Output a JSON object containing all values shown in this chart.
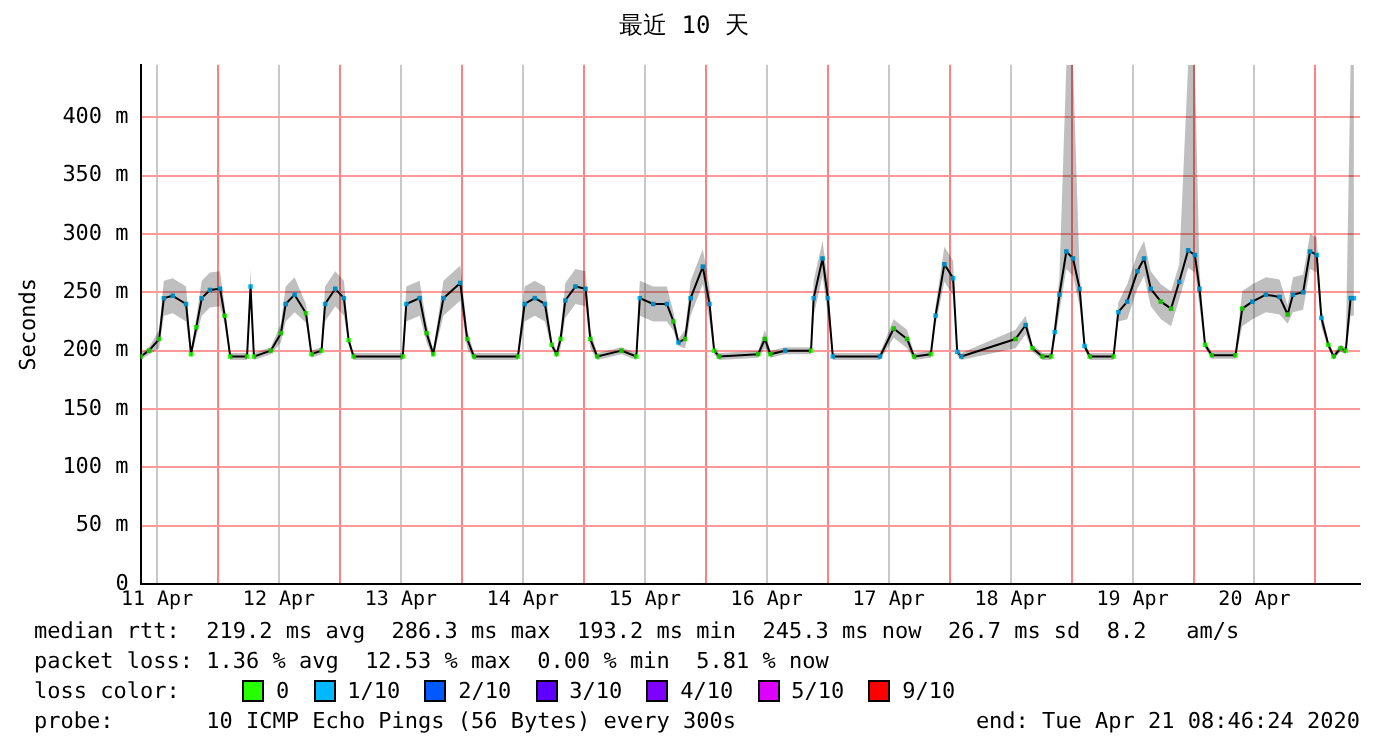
{
  "chart_data": {
    "type": "line",
    "title": "最近 10 天",
    "ylabel": "Seconds",
    "legend_title": "loss color:",
    "legend": "bottom",
    "grid": true,
    "marker": "square",
    "annotations": [
      "median rtt:  219.2 ms avg  286.3 ms max  193.2 ms min  245.3 ms now  26.7 ms sd  8.2   am/s",
      "packet loss: 1.36 % avg  12.53 % max  0.00 % min  5.81 % now",
      "probe:       10 ICMP Echo Pings (56 Bytes) every 300s",
      "end: Tue Apr 21 08:46:24 2020"
    ],
    "xlim": [
      "2020-04-11T08:46",
      "2020-04-21T08:46"
    ],
    "xticks": [
      {
        "value": "2020-04-11T12:00",
        "label": "11 Apr"
      },
      {
        "value": "2020-04-12",
        "label": null
      },
      {
        "value": "2020-04-12T12:00",
        "label": "12 Apr"
      },
      {
        "value": "2020-04-13",
        "label": null
      },
      {
        "value": "2020-04-13T12:00",
        "label": "13 Apr"
      },
      {
        "value": "2020-04-14",
        "label": null
      },
      {
        "value": "2020-04-14T12:00",
        "label": "14 Apr"
      },
      {
        "value": "2020-04-15",
        "label": null
      },
      {
        "value": "2020-04-15T12:00",
        "label": "15 Apr"
      },
      {
        "value": "2020-04-16",
        "label": null
      },
      {
        "value": "2020-04-16T12:00",
        "label": "16 Apr"
      },
      {
        "value": "2020-04-17",
        "label": null
      },
      {
        "value": "2020-04-17T12:00",
        "label": "17 Apr"
      },
      {
        "value": "2020-04-18",
        "label": null
      },
      {
        "value": "2020-04-18T12:00",
        "label": "18 Apr"
      },
      {
        "value": "2020-04-19",
        "label": null
      },
      {
        "value": "2020-04-19T12:00",
        "label": "19 Apr"
      },
      {
        "value": "2020-04-20",
        "label": null
      },
      {
        "value": "2020-04-20T12:00",
        "label": "20 Apr"
      },
      {
        "value": "2020-04-21",
        "label": null
      }
    ],
    "ylim": [
      0,
      445
    ],
    "yticks": [
      0,
      {
        "value": 50,
        "label": "50 m"
      },
      {
        "value": 100,
        "label": "100 m"
      },
      {
        "value": 150,
        "label": "150 m"
      },
      {
        "value": 200,
        "label": "200 m"
      },
      {
        "value": 250,
        "label": "250 m"
      },
      {
        "value": 300,
        "label": "300 m"
      },
      {
        "value": 350,
        "label": "350 m"
      },
      {
        "value": 400,
        "label": "400 m"
      }
    ],
    "series": [
      {
        "color": "#000000",
        "x": [
          "2020-04-11T08:46",
          "2020-04-11T10:25",
          "2020-04-11T12:25",
          "2020-04-11T13:20",
          "2020-04-11T15:05",
          "2020-04-11T17:43",
          "2020-04-11T18:41",
          "2020-04-11T19:43",
          "2020-04-11T20:48",
          "2020-04-11T22:24",
          "2020-04-12T00:24",
          "2020-04-12T01:19",
          "2020-04-12T02:24",
          "2020-04-12T05:43",
          "2020-04-12T06:24",
          "2020-04-12T07:04",
          "2020-04-12T10:23",
          "2020-04-12T12:23",
          "2020-04-12T13:19",
          "2020-04-12T15:04",
          "2020-04-12T17:19",
          "2020-04-12T18:23",
          "2020-04-12T20:23",
          "2020-04-12T21:04",
          "2020-04-12T23:04",
          "2020-04-13T00:47",
          "2020-04-13T01:42",
          "2020-04-13T02:40",
          "2020-04-13T12:22",
          "2020-04-13T13:03",
          "2020-04-13T15:41",
          "2020-04-13T17:03",
          "2020-04-13T18:22",
          "2020-04-13T20:22",
          "2020-04-13T23:41",
          "2020-04-14T01:02",
          "2020-04-14T02:22",
          "2020-04-14T11:02",
          "2020-04-14T12:21",
          "2020-04-14T14:21",
          "2020-04-14T16:21",
          "2020-04-14T17:40",
          "2020-04-14T18:38",
          "2020-04-14T19:26",
          "2020-04-14T20:21",
          "2020-04-14T22:21",
          "2020-04-15T00:21",
          "2020-04-15T01:16",
          "2020-04-15T02:37",
          "2020-04-15T07:25",
          "2020-04-15T10:20",
          "2020-04-15T11:01",
          "2020-04-15T13:39",
          "2020-04-15T16:20",
          "2020-04-15T17:39",
          "2020-04-15T18:37",
          "2020-04-15T19:56",
          "2020-04-15T21:01",
          "2020-04-15T23:25",
          "2020-04-16T00:44",
          "2020-04-16T01:39",
          "2020-04-16T02:37",
          "2020-04-16T10:19",
          "2020-04-16T11:38",
          "2020-04-16T12:43",
          "2020-04-16T15:38",
          "2020-04-16T20:43",
          "2020-04-16T21:14",
          "2020-04-16T22:59",
          "2020-04-17T00:02",
          "2020-04-17T01:00",
          "2020-04-17T10:18",
          "2020-04-17T12:59",
          "2020-04-17T15:37",
          "2020-04-17T16:59",
          "2020-04-17T20:18",
          "2020-04-17T21:13",
          "2020-04-17T22:58",
          "2020-04-18T00:41",
          "2020-04-18T01:29",
          "2020-04-18T02:17",
          "2020-04-18T12:58",
          "2020-04-18T14:58",
          "2020-04-18T16:17",
          "2020-04-18T18:17",
          "2020-04-18T20:00",
          "2020-04-18T20:41",
          "2020-04-18T21:36",
          "2020-04-18T22:58",
          "2020-04-19T00:17",
          "2020-04-19T01:35",
          "2020-04-19T02:33",
          "2020-04-19T03:35",
          "2020-04-19T08:16",
          "2020-04-19T09:11",
          "2020-04-19T10:57",
          "2020-04-19T12:57",
          "2020-04-19T14:16",
          "2020-04-19T15:35",
          "2020-04-19T17:35",
          "2020-04-19T19:35",
          "2020-04-19T21:11",
          "2020-04-19T22:56",
          "2020-04-20T00:16",
          "2020-04-20T01:11",
          "2020-04-20T02:16",
          "2020-04-20T03:35",
          "2020-04-20T08:16",
          "2020-04-20T09:35",
          "2020-04-20T11:35",
          "2020-04-20T14:15",
          "2020-04-20T16:56",
          "2020-04-20T18:32",
          "2020-04-20T19:34",
          "2020-04-20T21:34",
          "2020-04-20T22:56",
          "2020-04-21T00:15",
          "2020-04-21T01:10",
          "2020-04-21T02:32",
          "2020-04-21T03:34",
          "2020-04-21T04:56",
          "2020-04-21T05:58",
          "2020-04-21T06:55",
          "2020-04-21T07:34"
        ],
        "values": [
          195,
          200,
          210,
          245,
          247,
          240,
          197,
          220,
          245,
          252,
          253,
          230,
          195,
          195,
          255,
          195,
          200,
          215,
          240,
          248,
          232,
          197,
          200,
          240,
          253,
          245,
          209,
          195,
          195,
          240,
          245,
          215,
          197,
          245,
          258,
          210,
          195,
          195,
          240,
          245,
          240,
          205,
          197,
          210,
          243,
          255,
          253,
          210,
          195,
          200,
          195,
          245,
          240,
          240,
          225,
          207,
          210,
          245,
          272,
          240,
          200,
          195,
          197,
          210,
          197,
          200,
          200,
          245,
          279,
          245,
          195,
          195,
          219,
          210,
          195,
          197,
          230,
          274,
          262,
          199,
          195,
          210,
          222,
          202,
          195,
          195,
          216,
          248,
          285,
          279,
          253,
          204,
          195,
          195,
          233,
          242,
          268,
          279,
          253,
          242,
          236,
          259,
          286,
          282,
          253,
          205,
          196,
          196,
          236,
          242,
          248,
          246,
          231,
          248,
          250,
          285,
          282,
          228,
          205,
          195,
          202,
          200,
          245,
          245
        ],
        "lower": [
          192,
          197,
          202,
          230,
          232,
          225,
          194,
          212,
          230,
          237,
          238,
          222,
          192,
          192,
          240,
          192,
          197,
          207,
          225,
          233,
          224,
          194,
          197,
          225,
          238,
          230,
          206,
          192,
          192,
          225,
          230,
          207,
          194,
          230,
          243,
          202,
          192,
          192,
          225,
          230,
          225,
          202,
          194,
          202,
          228,
          240,
          238,
          202,
          192,
          197,
          192,
          230,
          225,
          225,
          217,
          204,
          202,
          230,
          257,
          225,
          197,
          192,
          194,
          202,
          194,
          197,
          197,
          230,
          264,
          230,
          192,
          192,
          211,
          202,
          192,
          194,
          222,
          259,
          247,
          196,
          192,
          202,
          214,
          199,
          192,
          192,
          208,
          233,
          270,
          264,
          238,
          201,
          192,
          192,
          225,
          227,
          253,
          264,
          238,
          227,
          221,
          244,
          271,
          267,
          238,
          202,
          193,
          193,
          221,
          227,
          233,
          231,
          223,
          233,
          235,
          270,
          267,
          220,
          202,
          192,
          199,
          197,
          230,
          230
        ],
        "upper": [
          198,
          203,
          218,
          260,
          262,
          255,
          200,
          228,
          260,
          267,
          268,
          238,
          198,
          198,
          270,
          198,
          203,
          223,
          255,
          263,
          240,
          200,
          203,
          255,
          268,
          260,
          212,
          198,
          198,
          255,
          260,
          223,
          200,
          260,
          273,
          218,
          198,
          198,
          255,
          260,
          255,
          208,
          200,
          218,
          258,
          270,
          268,
          218,
          198,
          203,
          198,
          260,
          255,
          255,
          233,
          210,
          218,
          260,
          287,
          255,
          203,
          198,
          200,
          218,
          200,
          203,
          203,
          260,
          294,
          260,
          198,
          198,
          227,
          218,
          198,
          200,
          238,
          289,
          277,
          202,
          198,
          218,
          230,
          205,
          198,
          198,
          224,
          263,
          445,
          445,
          268,
          207,
          198,
          198,
          241,
          257,
          283,
          294,
          268,
          257,
          251,
          274,
          445,
          445,
          268,
          208,
          199,
          199,
          251,
          257,
          263,
          261,
          239,
          263,
          265,
          300,
          297,
          236,
          208,
          198,
          205,
          203,
          445,
          445
        ],
        "colors": [
          "#26ff00",
          "#26ff00",
          "#26ff00",
          "#00b8ff",
          "#00b8ff",
          "#00b8ff",
          "#26ff00",
          "#26ff00",
          "#00b8ff",
          "#00b8ff",
          "#00b8ff",
          "#26ff00",
          "#26ff00",
          "#26ff00",
          "#00b8ff",
          "#26ff00",
          "#26ff00",
          "#26ff00",
          "#00b8ff",
          "#00b8ff",
          "#26ff00",
          "#26ff00",
          "#26ff00",
          "#00b8ff",
          "#00b8ff",
          "#00b8ff",
          "#26ff00",
          "#26ff00",
          "#26ff00",
          "#00b8ff",
          "#00b8ff",
          "#26ff00",
          "#26ff00",
          "#00b8ff",
          "#00b8ff",
          "#26ff00",
          "#26ff00",
          "#26ff00",
          "#00b8ff",
          "#00b8ff",
          "#00b8ff",
          "#26ff00",
          "#26ff00",
          "#26ff00",
          "#00b8ff",
          "#00b8ff",
          "#00b8ff",
          "#26ff00",
          "#26ff00",
          "#26ff00",
          "#26ff00",
          "#00b8ff",
          "#00b8ff",
          "#00b8ff",
          "#26ff00",
          "#00b8ff",
          "#26ff00",
          "#00b8ff",
          "#00b8ff",
          "#00b8ff",
          "#26ff00",
          "#26ff00",
          "#26ff00",
          "#26ff00",
          "#26ff00",
          "#00b8ff",
          "#26ff00",
          "#00b8ff",
          "#00b8ff",
          "#00b8ff",
          "#00b8ff",
          "#00b8ff",
          "#26ff00",
          "#26ff00",
          "#26ff00",
          "#26ff00",
          "#00b8ff",
          "#00b8ff",
          "#00b8ff",
          "#00b8ff",
          "#00b8ff",
          "#26ff00",
          "#00b8ff",
          "#26ff00",
          "#26ff00",
          "#26ff00",
          "#00b8ff",
          "#00b8ff",
          "#00b8ff",
          "#00b8ff",
          "#00b8ff",
          "#00b8ff",
          "#26ff00",
          "#26ff00",
          "#00b8ff",
          "#00b8ff",
          "#00b8ff",
          "#00b8ff",
          "#00b8ff",
          "#26ff00",
          "#26ff00",
          "#00b8ff",
          "#00b8ff",
          "#00b8ff",
          "#00b8ff",
          "#26ff00",
          "#26ff00",
          "#26ff00",
          "#26ff00",
          "#00b8ff",
          "#00b8ff",
          "#00b8ff",
          "#26ff00",
          "#00b8ff",
          "#00b8ff",
          "#00b8ff",
          "#00b8ff",
          "#00b8ff",
          "#26ff00",
          "#26ff00",
          "#26ff00",
          "#26ff00",
          "#00b8ff",
          "#00b8ff"
        ]
      },
      {
        "name": "0",
        "color": "#26ff00"
      },
      {
        "name": "1/10",
        "color": "#00b8ff"
      },
      {
        "name": "2/10",
        "color": "#0059ff"
      },
      {
        "name": "3/10",
        "color": "#5e00ff"
      },
      {
        "name": "4/10",
        "color": "#7e00ff"
      },
      {
        "name": "5/10",
        "color": "#dd00ff"
      },
      {
        "name": "9/10",
        "color": "#ff0000"
      }
    ]
  }
}
